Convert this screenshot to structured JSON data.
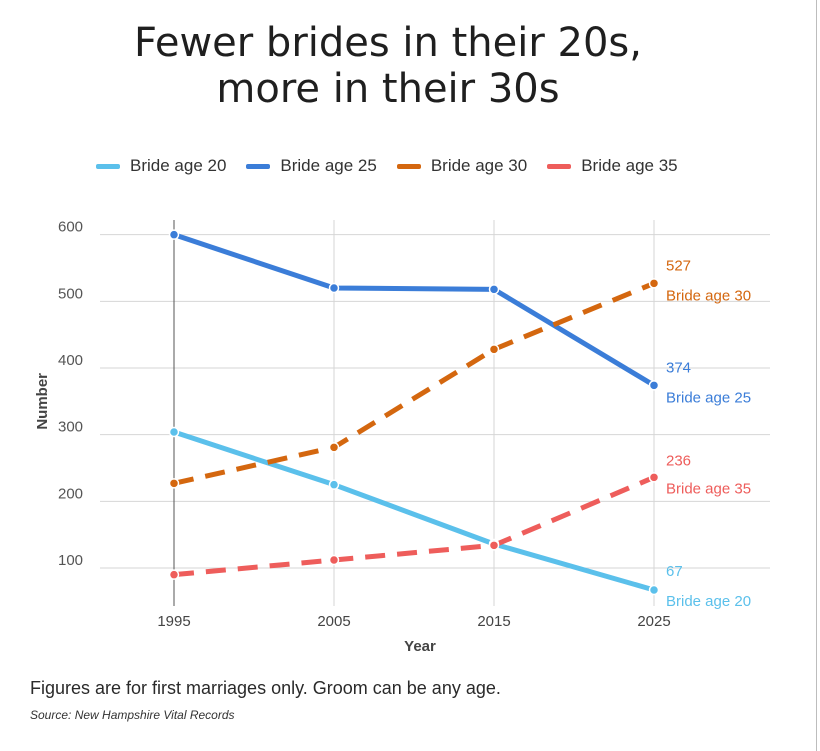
{
  "title_line1": "Fewer brides in their 20s,",
  "title_line2": "more in their 30s",
  "footnote": "Figures are for first marriages only. Groom can be any age.",
  "source": "Source: New Hampshire Vital Records",
  "chart_data": {
    "type": "line",
    "title": "Fewer brides in their 20s, more in their 30s",
    "xlabel": "Year",
    "ylabel": "Number",
    "x": [
      1995,
      2005,
      2015,
      2025
    ],
    "x_tick_labels": [
      "1995",
      "2005",
      "2015",
      "2025"
    ],
    "y_ticks": [
      100,
      200,
      300,
      400,
      500,
      600
    ],
    "ylim": [
      52,
      622
    ],
    "grid": true,
    "legend_position": "top",
    "series": [
      {
        "name": "Bride age 20",
        "color": "#5bc0eb",
        "dashed": false,
        "values": [
          304,
          225,
          136,
          67
        ],
        "end_label": "67"
      },
      {
        "name": "Bride age 25",
        "color": "#3b7dd8",
        "dashed": false,
        "values": [
          600,
          520,
          518,
          374
        ],
        "end_label": "374"
      },
      {
        "name": "Bride age 30",
        "color": "#d4670f",
        "dashed": true,
        "values": [
          227,
          281,
          428,
          527
        ],
        "end_label": "527"
      },
      {
        "name": "Bride age 35",
        "color": "#ee5d5b",
        "dashed": true,
        "values": [
          90,
          112,
          134,
          236
        ],
        "end_label": "236"
      }
    ]
  }
}
